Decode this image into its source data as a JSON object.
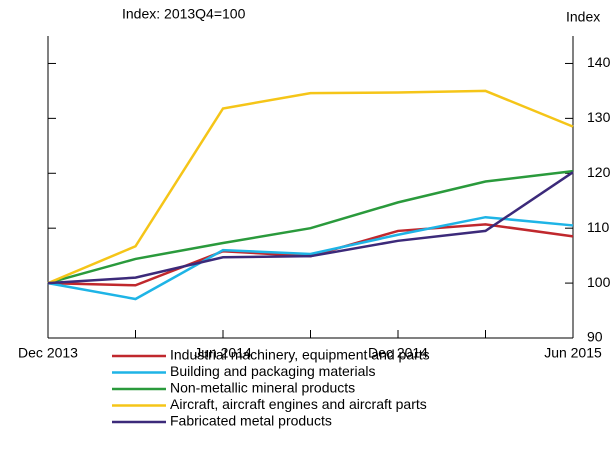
{
  "chart_data": {
    "type": "line",
    "title": "Index: 2013Q4=100",
    "y2_axis_label": "Index",
    "categories": [
      "Dec 2013",
      null,
      "Jun 2014",
      null,
      "Dec 2014",
      null,
      "Jun 2015"
    ],
    "ylim": [
      90,
      145
    ],
    "yticks": [
      90,
      100,
      110,
      120,
      130,
      140
    ],
    "series": [
      {
        "name": "Industrial machinery, equipment and parts",
        "color": "#c0282d",
        "values": [
          100,
          99.6,
          105.8,
          104.9,
          109.5,
          110.7,
          108.5
        ]
      },
      {
        "name": "Building and packaging materials",
        "color": "#1eb4e6",
        "values": [
          100,
          97.1,
          106,
          105.3,
          108.8,
          112,
          110.5
        ]
      },
      {
        "name": "Non-metallic mineral products",
        "color": "#2a9a3c",
        "values": [
          100,
          104.4,
          107.3,
          110,
          114.7,
          118.5,
          120.4
        ]
      },
      {
        "name": "Aircraft, aircraft engines and aircraft parts",
        "color": "#f5c518",
        "values": [
          100,
          106.7,
          131.8,
          134.6,
          134.7,
          135,
          128.5
        ]
      },
      {
        "name": "Fabricated metal products",
        "color": "#3c2a7a",
        "values": [
          100,
          101,
          104.7,
          104.9,
          107.7,
          109.5,
          120.2
        ]
      }
    ]
  }
}
